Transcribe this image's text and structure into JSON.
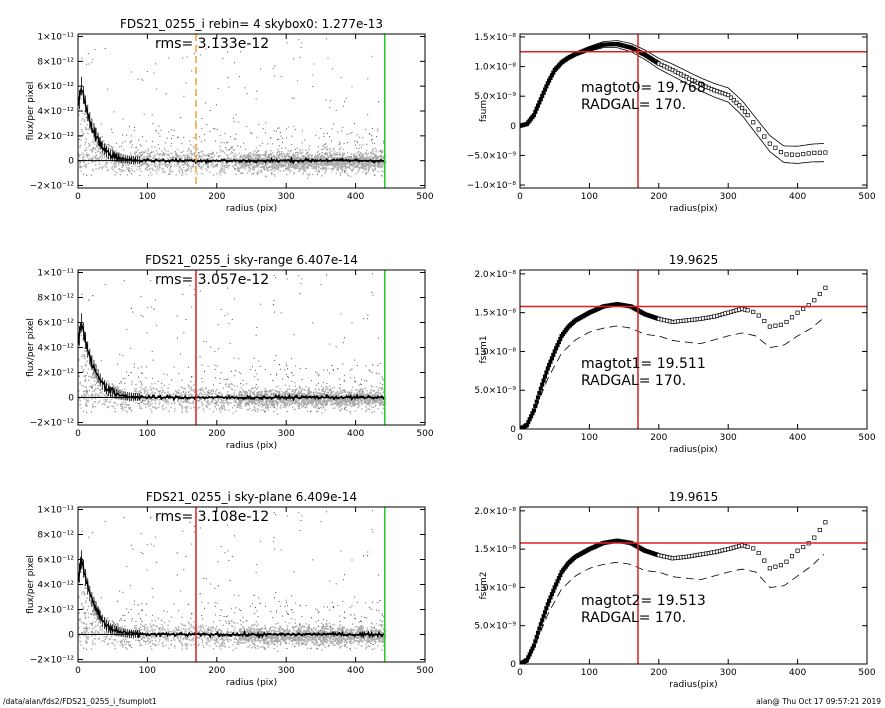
{
  "footer": {
    "left": "/data/alan/fds2/FDS21_0255_i_fsumplot1",
    "right": "alan@  Thu Oct 17 09:57:21 2019"
  },
  "colors": {
    "points": "#9a9a9a",
    "profile": "#000000",
    "vline_orange": "#f0a030",
    "vline_red": "#e02020",
    "vline_green": "#22cc22",
    "hline_red": "#e02020"
  },
  "chart_data": [
    {
      "type": "scatter",
      "title": "FDS21_0255_i rebin= 4    skybox0:  1.277e-13",
      "annotation": "rms= 3.133e-12",
      "xlabel": "radius (pix)",
      "ylabel": "flux/per pixel",
      "xlim": [
        0,
        500
      ],
      "ylim": [
        -2.2e-12,
        1.02e-11
      ],
      "xticks": [
        0,
        100,
        200,
        300,
        400,
        500
      ],
      "xtick_labels": [
        "0",
        "100",
        "200",
        "300",
        "400",
        "500"
      ],
      "yticks": [
        -2e-12,
        0,
        2e-12,
        4e-12,
        6e-12,
        8e-12,
        1e-11
      ],
      "ytick_labels": [
        "−2×10⁻¹²",
        "0",
        "2×10⁻¹²",
        "4×10⁻¹²",
        "6×10⁻¹²",
        "8×10⁻¹²",
        "1×10⁻¹¹"
      ],
      "vlines": [
        {
          "x": 170,
          "color": "orange",
          "style": "dashed"
        },
        {
          "x": 442,
          "color": "green",
          "style": "solid"
        }
      ],
      "profile": {
        "x": [
          0,
          5,
          10,
          15,
          20,
          25,
          30,
          35,
          40,
          45,
          50,
          60,
          70,
          80,
          100,
          150,
          200,
          250,
          300,
          350,
          400,
          442
        ],
        "y": [
          4.2e-12,
          6e-12,
          4.8e-12,
          3.6e-12,
          2.8e-12,
          2.2e-12,
          1.6e-12,
          1.1e-12,
          8e-13,
          5e-13,
          4e-13,
          2e-13,
          1e-13,
          5e-14,
          2e-14,
          0,
          0,
          -2e-14,
          0,
          3e-14,
          0,
          0
        ]
      }
    },
    {
      "type": "line",
      "title": "",
      "annotation_lines": [
        "magtot0=  19.768",
        "RADGAL=    170."
      ],
      "xlabel": "radius(pix)",
      "ylabel": "fsum",
      "xlim": [
        0,
        500
      ],
      "ylim": [
        -1.05e-08,
        1.55e-08
      ],
      "xticks": [
        0,
        100,
        200,
        300,
        400,
        500
      ],
      "xtick_labels": [
        "0",
        "100",
        "200",
        "300",
        "400",
        "500"
      ],
      "yticks": [
        -1e-08,
        -5e-09,
        0,
        5e-09,
        1e-08,
        1.5e-08
      ],
      "ytick_labels": [
        "−1.0×10⁻⁸",
        "−5.0×10⁻⁹",
        "0",
        "5.0×10⁻⁹",
        "1.0×10⁻⁸",
        "1.5×10⁻⁸"
      ],
      "vlines": [
        {
          "x": 170,
          "color": "red"
        }
      ],
      "hlines": [
        {
          "y": 1.25e-08,
          "color": "red"
        }
      ],
      "series_main": {
        "x": [
          0,
          10,
          20,
          30,
          40,
          50,
          60,
          70,
          80,
          100,
          120,
          140,
          160,
          180,
          200,
          220,
          240,
          260,
          280,
          300,
          320,
          340,
          360,
          380,
          400,
          420,
          440
        ],
        "y": [
          0,
          3e-10,
          1.8e-09,
          4.5e-09,
          7.2e-09,
          9.4e-09,
          1.07e-08,
          1.15e-08,
          1.21e-08,
          1.3e-08,
          1.37e-08,
          1.38e-08,
          1.32e-08,
          1.2e-08,
          1.05e-08,
          9.4e-09,
          8.2e-09,
          7e-09,
          6e-09,
          5.2e-09,
          3e-09,
          0,
          -3e-09,
          -4.8e-09,
          -4.9e-09,
          -4.6e-09,
          -4.5e-09
        ]
      },
      "upper_offset": [
        0,
        0,
        0,
        1e-10,
        1e-10,
        1.5e-10,
        2e-10,
        2.5e-10,
        3e-10,
        4e-10,
        5e-10,
        6e-10,
        7e-10,
        8e-10,
        9e-10,
        1e-09,
        1.05e-09,
        1.1e-09,
        1.15e-09,
        1.2e-09,
        1.25e-09,
        1.3e-09,
        1.35e-09,
        1.4e-09,
        1.45e-09,
        1.5e-09,
        1.55e-09
      ]
    },
    {
      "type": "scatter",
      "title": "FDS21_0255_i sky-range  6.407e-14",
      "annotation": "rms= 3.057e-12",
      "xlabel": "radius (pix)",
      "ylabel": "flux/per pixel",
      "xlim": [
        0,
        500
      ],
      "ylim": [
        -2.2e-12,
        1.02e-11
      ],
      "xticks": [
        0,
        100,
        200,
        300,
        400,
        500
      ],
      "xtick_labels": [
        "0",
        "100",
        "200",
        "300",
        "400",
        "500"
      ],
      "yticks": [
        -2e-12,
        0,
        2e-12,
        4e-12,
        6e-12,
        8e-12,
        1e-11
      ],
      "ytick_labels": [
        "−2×10⁻¹²",
        "0",
        "2×10⁻¹²",
        "4×10⁻¹²",
        "6×10⁻¹²",
        "8×10⁻¹²",
        "1×10⁻¹¹"
      ],
      "vlines": [
        {
          "x": 170,
          "color": "red",
          "style": "solid"
        },
        {
          "x": 442,
          "color": "green",
          "style": "solid"
        }
      ],
      "profile": {
        "x": [
          0,
          5,
          10,
          15,
          20,
          25,
          30,
          35,
          40,
          45,
          50,
          60,
          70,
          80,
          100,
          150,
          200,
          250,
          300,
          350,
          400,
          442
        ],
        "y": [
          4.2e-12,
          6e-12,
          4.8e-12,
          3.6e-12,
          2.8e-12,
          2.2e-12,
          1.6e-12,
          1.1e-12,
          8e-13,
          5e-13,
          4e-13,
          2e-13,
          1e-13,
          5e-14,
          2e-14,
          0,
          0,
          -2e-14,
          0,
          3e-14,
          0,
          0
        ]
      }
    },
    {
      "type": "line",
      "title": "19.9625",
      "annotation_lines": [
        "magtot1=  19.511",
        "RADGAL=    170."
      ],
      "xlabel": "radius(pix)",
      "ylabel": "fsum1",
      "xlim": [
        0,
        500
      ],
      "ylim": [
        0,
        2.05e-08
      ],
      "xticks": [
        0,
        100,
        200,
        300,
        400,
        500
      ],
      "xtick_labels": [
        "0",
        "100",
        "200",
        "300",
        "400",
        "500"
      ],
      "yticks": [
        0,
        5e-09,
        1e-08,
        1.5e-08,
        2e-08
      ],
      "ytick_labels": [
        "0",
        "5.0×10⁻⁹",
        "1.0×10⁻⁸",
        "1.5×10⁻⁸",
        "2.0×10⁻⁸"
      ],
      "vlines": [
        {
          "x": 170,
          "color": "red"
        }
      ],
      "hlines": [
        {
          "y": 1.58e-08,
          "color": "red"
        }
      ],
      "series_main": {
        "x": [
          0,
          10,
          20,
          30,
          40,
          50,
          60,
          70,
          80,
          100,
          120,
          140,
          160,
          180,
          200,
          220,
          240,
          260,
          280,
          300,
          320,
          340,
          360,
          380,
          400,
          420,
          440
        ],
        "y": [
          0,
          5e-10,
          2.4e-09,
          5.2e-09,
          7.8e-09,
          1e-08,
          1.2e-08,
          1.32e-08,
          1.4e-08,
          1.5e-08,
          1.58e-08,
          1.61e-08,
          1.58e-08,
          1.48e-08,
          1.42e-08,
          1.38e-08,
          1.4e-08,
          1.42e-08,
          1.45e-08,
          1.5e-08,
          1.55e-08,
          1.5e-08,
          1.32e-08,
          1.35e-08,
          1.5e-08,
          1.62e-08,
          1.82e-08
        ]
      },
      "dashed": {
        "x": [
          0,
          20,
          40,
          60,
          80,
          100,
          120,
          140,
          160,
          180,
          200,
          220,
          240,
          260,
          280,
          300,
          320,
          340,
          360,
          380,
          400,
          420,
          440
        ],
        "y": [
          0,
          2e-09,
          6.5e-09,
          9.8e-09,
          1.15e-08,
          1.25e-08,
          1.3e-08,
          1.33e-08,
          1.3e-08,
          1.22e-08,
          1.2e-08,
          1.14e-08,
          1.12e-08,
          1.1e-08,
          1.15e-08,
          1.2e-08,
          1.24e-08,
          1.2e-08,
          1.05e-08,
          1.08e-08,
          1.2e-08,
          1.3e-08,
          1.45e-08
        ]
      }
    },
    {
      "type": "scatter",
      "title": "FDS21_0255_i sky-plane  6.409e-14",
      "annotation": "rms= 3.108e-12",
      "xlabel": "radius (pix)",
      "ylabel": "flux/per pixel",
      "xlim": [
        0,
        500
      ],
      "ylim": [
        -2.2e-12,
        1.02e-11
      ],
      "xticks": [
        0,
        100,
        200,
        300,
        400,
        500
      ],
      "xtick_labels": [
        "0",
        "100",
        "200",
        "300",
        "400",
        "500"
      ],
      "yticks": [
        -2e-12,
        0,
        2e-12,
        4e-12,
        6e-12,
        8e-12,
        1e-11
      ],
      "ytick_labels": [
        "−2×10⁻¹²",
        "0",
        "2×10⁻¹²",
        "4×10⁻¹²",
        "6×10⁻¹²",
        "8×10⁻¹²",
        "1×10⁻¹¹"
      ],
      "vlines": [
        {
          "x": 170,
          "color": "red",
          "style": "solid"
        },
        {
          "x": 442,
          "color": "green",
          "style": "solid"
        }
      ],
      "profile": {
        "x": [
          0,
          5,
          10,
          15,
          20,
          25,
          30,
          35,
          40,
          45,
          50,
          60,
          70,
          80,
          100,
          150,
          200,
          250,
          300,
          350,
          400,
          442
        ],
        "y": [
          4.2e-12,
          6e-12,
          4.8e-12,
          3.6e-12,
          2.8e-12,
          2.2e-12,
          1.6e-12,
          1.1e-12,
          8e-13,
          5e-13,
          4e-13,
          2e-13,
          1e-13,
          5e-14,
          2e-14,
          0,
          0,
          -2e-14,
          0,
          3e-14,
          0,
          0
        ]
      }
    },
    {
      "type": "line",
      "title": "19.9615",
      "annotation_lines": [
        "magtot2=  19.513",
        "RADGAL=    170."
      ],
      "xlabel": "radius(pix)",
      "ylabel": "fsum2",
      "xlim": [
        0,
        500
      ],
      "ylim": [
        0,
        2.05e-08
      ],
      "xticks": [
        0,
        100,
        200,
        300,
        400,
        500
      ],
      "xtick_labels": [
        "0",
        "100",
        "200",
        "300",
        "400",
        "500"
      ],
      "yticks": [
        0,
        5e-09,
        1e-08,
        1.5e-08,
        2e-08
      ],
      "ytick_labels": [
        "0",
        "5.0×10⁻⁹",
        "1.0×10⁻⁸",
        "1.5×10⁻⁸",
        "2.0×10⁻⁸"
      ],
      "vlines": [
        {
          "x": 170,
          "color": "red"
        }
      ],
      "hlines": [
        {
          "y": 1.58e-08,
          "color": "red"
        }
      ],
      "series_main": {
        "x": [
          0,
          10,
          20,
          30,
          40,
          50,
          60,
          70,
          80,
          100,
          120,
          140,
          160,
          180,
          200,
          220,
          240,
          260,
          280,
          300,
          320,
          340,
          360,
          380,
          400,
          420,
          440
        ],
        "y": [
          0,
          5e-10,
          2.4e-09,
          5.2e-09,
          7.8e-09,
          1e-08,
          1.2e-08,
          1.32e-08,
          1.4e-08,
          1.5e-08,
          1.58e-08,
          1.61e-08,
          1.58e-08,
          1.48e-08,
          1.42e-08,
          1.38e-08,
          1.4e-08,
          1.43e-08,
          1.46e-08,
          1.5e-08,
          1.55e-08,
          1.5e-08,
          1.25e-08,
          1.3e-08,
          1.48e-08,
          1.6e-08,
          1.85e-08
        ]
      },
      "dashed": {
        "x": [
          0,
          20,
          40,
          60,
          80,
          100,
          120,
          140,
          160,
          180,
          200,
          220,
          240,
          260,
          280,
          300,
          320,
          340,
          360,
          380,
          400,
          420,
          440
        ],
        "y": [
          0,
          2e-09,
          6.5e-09,
          9.8e-09,
          1.15e-08,
          1.25e-08,
          1.3e-08,
          1.33e-08,
          1.3e-08,
          1.22e-08,
          1.2e-08,
          1.14e-08,
          1.12e-08,
          1.1e-08,
          1.15e-08,
          1.2e-08,
          1.24e-08,
          1.2e-08,
          1e-08,
          1.02e-08,
          1.15e-08,
          1.28e-08,
          1.45e-08
        ]
      }
    }
  ]
}
